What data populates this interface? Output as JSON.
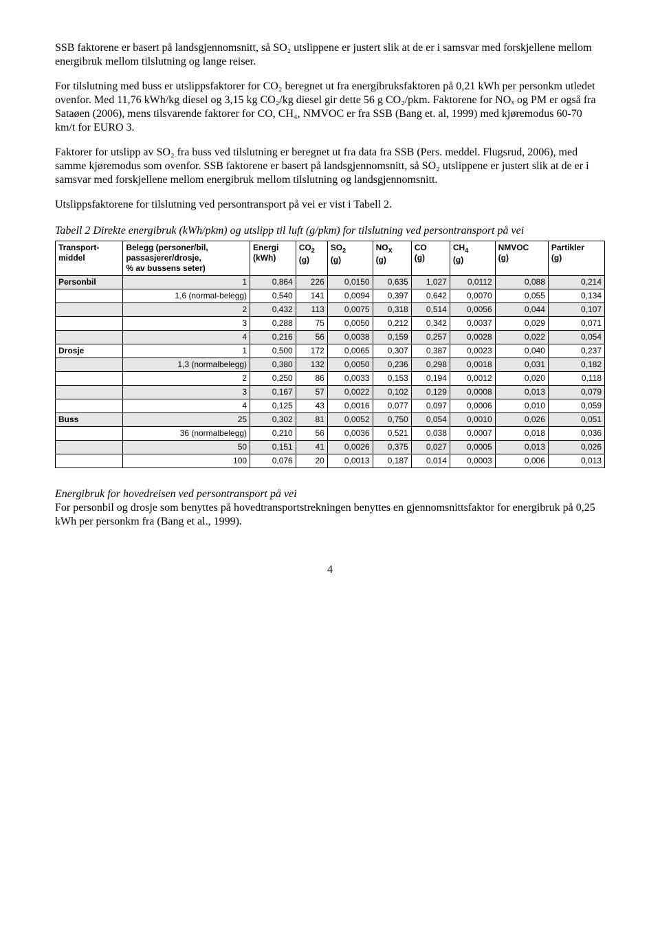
{
  "paragraphs": {
    "p1": "SSB faktorene er basert på landsgjennomsnitt, så SO₂ utslippene er justert slik at de er i samsvar med forskjellene mellom energibruk mellom tilslutning og lange reiser.",
    "p2": "For tilslutning med buss er utslippsfaktorer for CO₂ beregnet ut fra energibruksfaktoren på 0,21 kWh per personkm utledet ovenfor. Med 11,76 kWh/kg diesel og 3,15 kg CO₂/kg diesel gir dette 56 g CO₂/pkm. Faktorene for NOₓ og PM er også fra Sataøen (2006), mens tilsvarende faktorer for CO, CH₄, NMVOC er fra SSB (Bang et. al, 1999) med kjøremodus 60-70 km/t for EURO 3.",
    "p3": "Faktorer for utslipp av SO₂ fra buss ved tilslutning er beregnet ut fra data fra SSB (Pers. meddel. Flugsrud, 2006), med samme kjøremodus som ovenfor. SSB faktorene er basert på landsgjennomsnitt, så SO₂ utslippene er justert slik at de er i samsvar med forskjellene mellom energibruk mellom tilslutning og landsgjennomsnitt.",
    "p4": "Utslippsfaktorene for tilslutning ved persontransport på vei er vist i Tabell 2.",
    "tableTitle": "Tabell 2 Direkte energibruk (kWh/pkm) og utslipp til luft (g/pkm) for tilslutning ved persontransport på vei",
    "sectionTitle": "Energibruk for hovedreisen ved persontransport på vei",
    "p5": "For personbil og drosje som benyttes på hovedtransportstrekningen benyttes en gjennomsnittsfaktor for energibruk på 0,25 kWh per personkm fra (Bang et al., 1999).",
    "pageNumber": "4"
  },
  "table": {
    "columns": [
      "Transport-middel",
      "Belegg (personer/bil, passasjerer/drosje, % av bussens seter)",
      "Energi (kWh)",
      "CO₂ (g)",
      "SO₂ (g)",
      "NOₓ (g)",
      "CO (g)",
      "CH₄ (g)",
      "NMVOC (g)",
      "Partikler (g)"
    ],
    "headerHtml": {
      "c0a": "Transport-",
      "c0b": "middel",
      "c1a": "Belegg (personer/bil,",
      "c1b": "passasjerer/drosje,",
      "c1c": "% av bussens seter)",
      "c2a": "Energi",
      "c2b": "(kWh)",
      "c3a": "CO",
      "c3b": "(g)",
      "c4a": "SO",
      "c4b": "(g)",
      "c5a": "NO",
      "c5b": "(g)",
      "c6a": "CO",
      "c6b": "(g)",
      "c7a": "CH",
      "c7b": "(g)",
      "c8a": "NMVOC",
      "c8b": "(g)",
      "c9a": "Partikler",
      "c9b": "(g)"
    },
    "rows": [
      {
        "shade": true,
        "first": "Personbil",
        "belegg": "1",
        "vals": [
          "0,864",
          "226",
          "0,0150",
          "0,635",
          "1,027",
          "0,0112",
          "0,088",
          "0,214"
        ]
      },
      {
        "shade": false,
        "first": "",
        "belegg": "1,6 (normal-belegg)",
        "vals": [
          "0,540",
          "141",
          "0,0094",
          "0,397",
          "0,642",
          "0,0070",
          "0,055",
          "0,134"
        ]
      },
      {
        "shade": true,
        "first": "",
        "belegg": "2",
        "vals": [
          "0,432",
          "113",
          "0,0075",
          "0,318",
          "0,514",
          "0,0056",
          "0,044",
          "0,107"
        ]
      },
      {
        "shade": false,
        "first": "",
        "belegg": "3",
        "vals": [
          "0,288",
          "75",
          "0,0050",
          "0,212",
          "0,342",
          "0,0037",
          "0,029",
          "0,071"
        ]
      },
      {
        "shade": true,
        "first": "",
        "belegg": "4",
        "vals": [
          "0,216",
          "56",
          "0,0038",
          "0,159",
          "0,257",
          "0,0028",
          "0,022",
          "0,054"
        ]
      },
      {
        "shade": false,
        "first": "Drosje",
        "belegg": "1",
        "vals": [
          "0,500",
          "172",
          "0,0065",
          "0,307",
          "0,387",
          "0,0023",
          "0,040",
          "0,237"
        ]
      },
      {
        "shade": true,
        "first": "",
        "belegg": "1,3 (normalbelegg)",
        "vals": [
          "0,380",
          "132",
          "0,0050",
          "0,236",
          "0,298",
          "0,0018",
          "0,031",
          "0,182"
        ]
      },
      {
        "shade": false,
        "first": "",
        "belegg": "2",
        "vals": [
          "0,250",
          "86",
          "0,0033",
          "0,153",
          "0,194",
          "0,0012",
          "0,020",
          "0,118"
        ]
      },
      {
        "shade": true,
        "first": "",
        "belegg": "3",
        "vals": [
          "0,167",
          "57",
          "0,0022",
          "0,102",
          "0,129",
          "0,0008",
          "0,013",
          "0,079"
        ]
      },
      {
        "shade": false,
        "first": "",
        "belegg": "4",
        "vals": [
          "0,125",
          "43",
          "0,0016",
          "0,077",
          "0,097",
          "0,0006",
          "0,010",
          "0,059"
        ]
      },
      {
        "shade": true,
        "first": "Buss",
        "belegg": "25",
        "vals": [
          "0,302",
          "81",
          "0,0052",
          "0,750",
          "0,054",
          "0,0010",
          "0,026",
          "0,051"
        ]
      },
      {
        "shade": false,
        "first": "",
        "belegg": "36 (normalbelegg)",
        "vals": [
          "0,210",
          "56",
          "0,0036",
          "0,521",
          "0,038",
          "0,0007",
          "0,018",
          "0,036"
        ]
      },
      {
        "shade": true,
        "first": "",
        "belegg": "50",
        "vals": [
          "0,151",
          "41",
          "0,0026",
          "0,375",
          "0,027",
          "0,0005",
          "0,013",
          "0,026"
        ]
      },
      {
        "shade": false,
        "first": "",
        "belegg": "100",
        "vals": [
          "0,076",
          "20",
          "0,0013",
          "0,187",
          "0,014",
          "0,0003",
          "0,006",
          "0,013"
        ]
      }
    ]
  }
}
